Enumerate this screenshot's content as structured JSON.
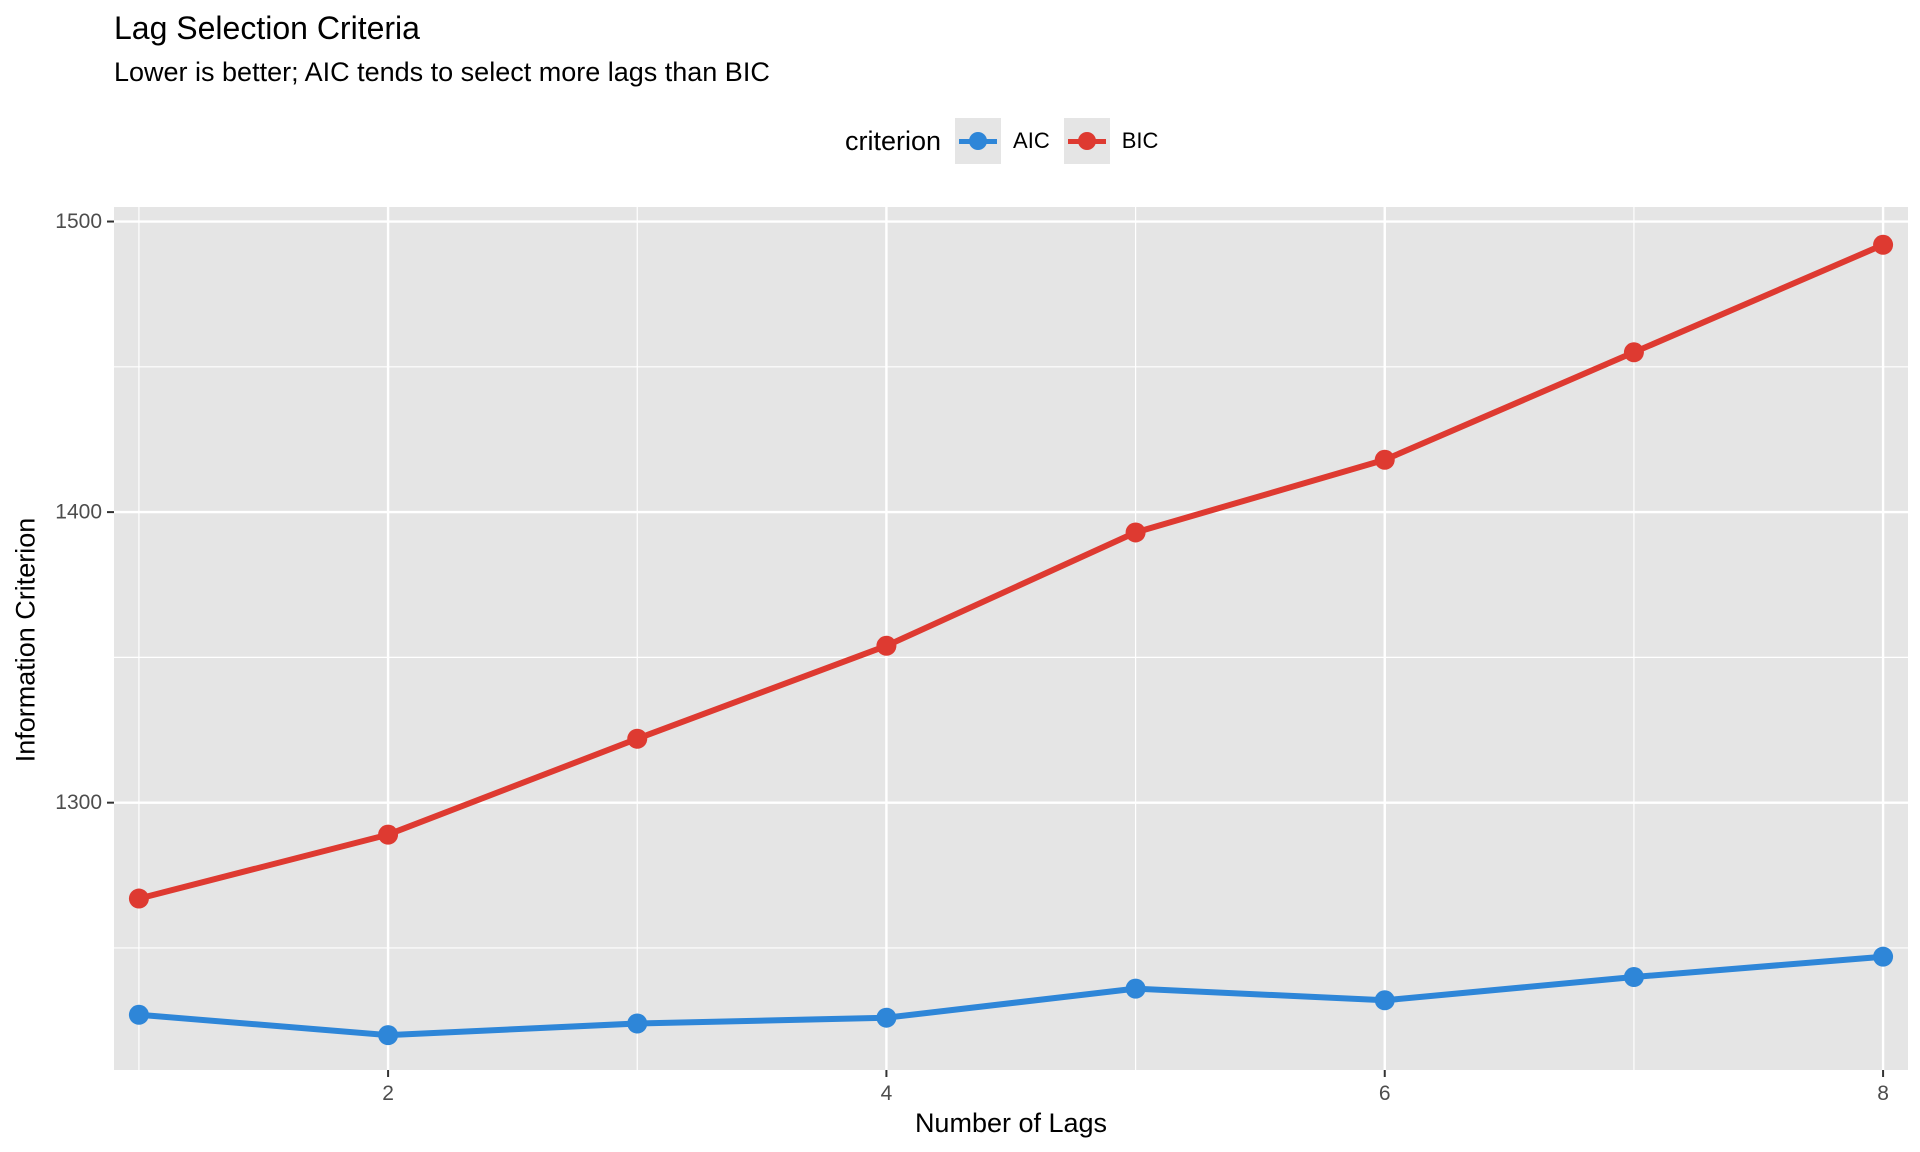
{
  "chart_data": {
    "type": "line",
    "title": "Lag Selection Criteria",
    "subtitle": "Lower is better; AIC tends to select more lags than BIC",
    "xlabel": "Number of Lags",
    "ylabel": "Information Criterion",
    "legend": {
      "title": "criterion",
      "position": "top"
    },
    "x": [
      1,
      2,
      3,
      4,
      5,
      6,
      7,
      8
    ],
    "series": [
      {
        "name": "AIC",
        "color": "#2e86d8",
        "values": [
          1227,
          1220,
          1224,
          1226,
          1236,
          1232,
          1240,
          1247
        ]
      },
      {
        "name": "BIC",
        "color": "#de3a31",
        "values": [
          1267,
          1289,
          1322,
          1354,
          1393,
          1418,
          1455,
          1492
        ]
      }
    ],
    "xlim": [
      0.9,
      8.1
    ],
    "ylim": [
      1208,
      1505
    ],
    "xticks": [
      2,
      4,
      6,
      8
    ],
    "yticks": [
      1300,
      1400,
      1500
    ],
    "y_minor_gridlines": [
      1250,
      1350,
      1450
    ],
    "x_minor_gridlines": [
      1,
      3,
      5,
      7
    ],
    "grid": true,
    "panel_background": "#e5e5e5",
    "gridline_color": "#ffffff",
    "tick_label_color": "#4d4d4d"
  }
}
